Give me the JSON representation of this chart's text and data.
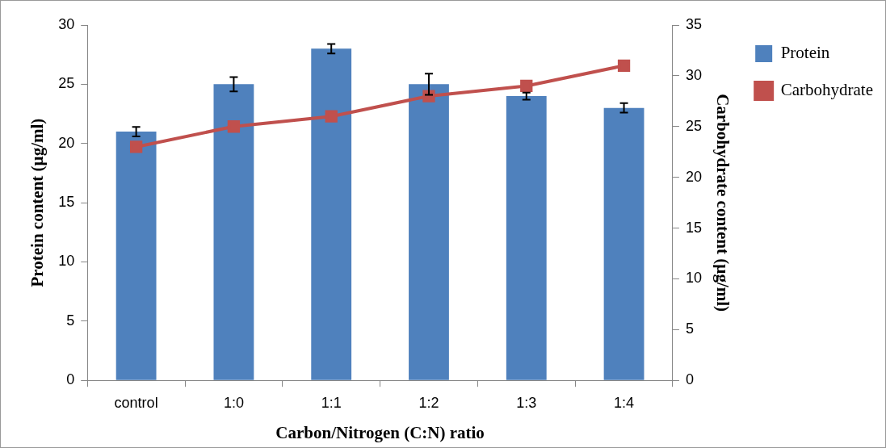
{
  "chart_data": {
    "type": "bar",
    "xlabel": "Carbon/Nitrogen (C:N) ratio",
    "ylabel": "Protein content (µg/ml)",
    "y2label": "Carbohydrate content (µg/ml)",
    "categories": [
      "control",
      "1:0",
      "1:1",
      "1:2",
      "1:3",
      "1:4"
    ],
    "series": [
      {
        "name": "Protein",
        "color": "#4f81bd",
        "values": [
          21,
          25,
          28,
          25,
          24,
          23
        ],
        "errors": [
          0.4,
          0.6,
          0.4,
          0.9,
          0.3,
          0.4
        ]
      },
      {
        "name": "Carbohydrate",
        "type": "line",
        "axis": "y2",
        "color": "#c0504d",
        "values": [
          23,
          25,
          26,
          28,
          29,
          31
        ]
      }
    ],
    "ylim": [
      0,
      30
    ],
    "yticks": [
      0,
      5,
      10,
      15,
      20,
      25,
      30
    ],
    "y2lim": [
      0,
      35
    ],
    "y2ticks": [
      0,
      5,
      10,
      15,
      20,
      25,
      30,
      35
    ],
    "grid": false,
    "legend": "right",
    "marker": "square",
    "line_style": "solid"
  }
}
